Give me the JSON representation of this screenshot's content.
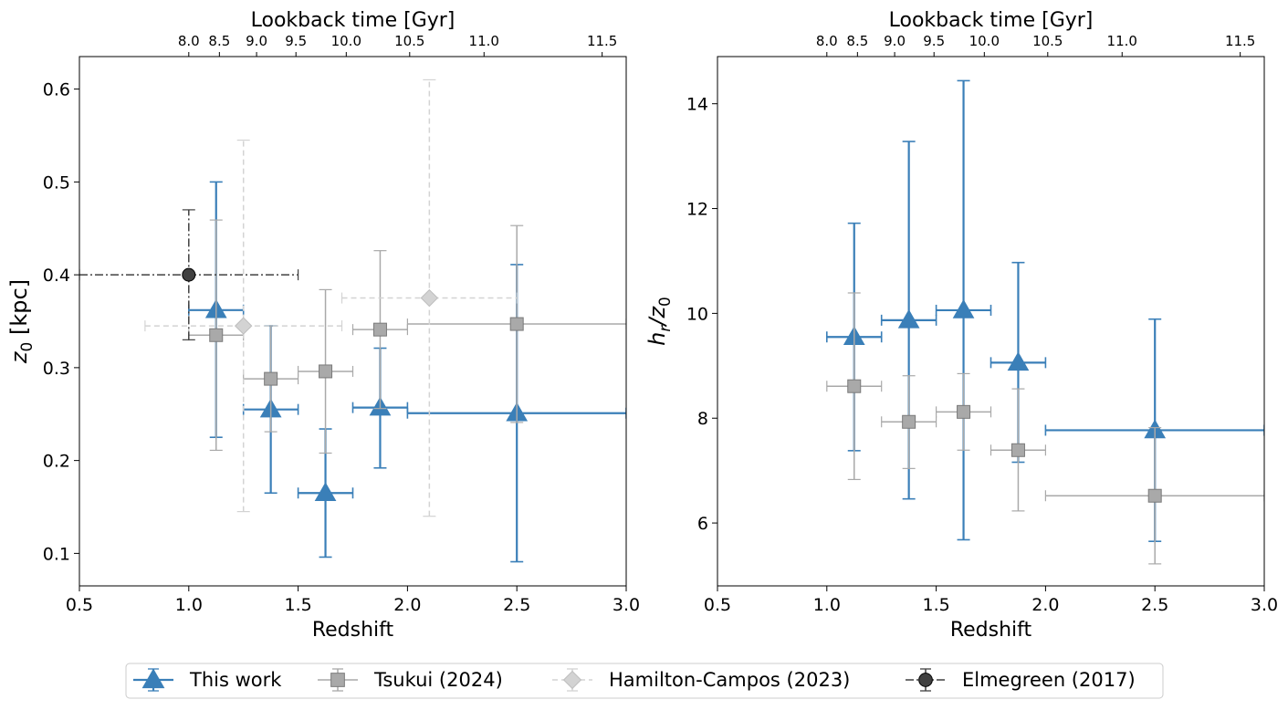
{
  "figure": {
    "legend_position": "bottom-center"
  },
  "legend": [
    {
      "label": "This work",
      "marker": "triangle",
      "color": "#3a7fb8"
    },
    {
      "label": "Tsukui (2024)",
      "marker": "square",
      "color": "#a9a9a9"
    },
    {
      "label": "Hamilton-Campos (2023)",
      "marker": "diamond",
      "color": "#d3d3d3"
    },
    {
      "label": "Elmegreen (2017)",
      "marker": "circle",
      "color": "#404040"
    }
  ],
  "chart_data": [
    {
      "id": "left",
      "type": "scatter",
      "title": "",
      "xlabel": "Redshift",
      "ylabel": "z0 [kpc]",
      "ylabel_main": "z",
      "ylabel_sub": "0",
      "ylabel_suffix": " [kpc]",
      "xlim": [
        0.5,
        3.0
      ],
      "ylim": [
        0.065,
        0.635
      ],
      "xticks": [
        0.5,
        1.0,
        1.5,
        2.0,
        2.5,
        3.0
      ],
      "xtick_labels": [
        "0.5",
        "1.0",
        "1.5",
        "2.0",
        "2.5",
        "3.0"
      ],
      "yticks": [
        0.1,
        0.2,
        0.3,
        0.4,
        0.5,
        0.6
      ],
      "ytick_labels": [
        "0.1",
        "0.2",
        "0.3",
        "0.4",
        "0.5",
        "0.6"
      ],
      "top_axis": {
        "label": "Lookback time [Gyr]",
        "tick_redshifts": [
          1.0,
          1.14,
          1.31,
          1.49,
          1.72,
          2.01,
          2.35,
          2.89
        ],
        "tick_labels": [
          "8.0",
          "8.5",
          "9.0",
          "9.5",
          "10.0",
          "10.5",
          "11.0",
          "11.5"
        ]
      },
      "series": [
        {
          "name": "This work",
          "key": "this-work",
          "marker": "triangle",
          "color": "#3a7fb8",
          "linestyle": "solid",
          "points": [
            {
              "x": 1.125,
              "xlo": 1.0,
              "xhi": 1.25,
              "y": 0.362,
              "ylo": 0.225,
              "yhi": 0.5
            },
            {
              "x": 1.375,
              "xlo": 1.25,
              "xhi": 1.5,
              "y": 0.255,
              "ylo": 0.165,
              "yhi": 0.345
            },
            {
              "x": 1.625,
              "xlo": 1.5,
              "xhi": 1.75,
              "y": 0.165,
              "ylo": 0.096,
              "yhi": 0.234
            },
            {
              "x": 1.875,
              "xlo": 1.75,
              "xhi": 2.0,
              "y": 0.257,
              "ylo": 0.192,
              "yhi": 0.321
            },
            {
              "x": 2.5,
              "xlo": 2.0,
              "xhi": 3.0,
              "y": 0.251,
              "ylo": 0.091,
              "yhi": 0.411
            }
          ]
        },
        {
          "name": "Tsukui (2024)",
          "key": "tsukui",
          "marker": "square",
          "color": "#a9a9a9",
          "linestyle": "solid",
          "points": [
            {
              "x": 1.125,
              "xlo": 1.0,
              "xhi": 1.25,
              "y": 0.335,
              "ylo": 0.211,
              "yhi": 0.459
            },
            {
              "x": 1.375,
              "xlo": 1.25,
              "xhi": 1.5,
              "y": 0.288,
              "ylo": 0.231,
              "yhi": 0.345
            },
            {
              "x": 1.625,
              "xlo": 1.5,
              "xhi": 1.75,
              "y": 0.296,
              "ylo": 0.208,
              "yhi": 0.384
            },
            {
              "x": 1.875,
              "xlo": 1.75,
              "xhi": 2.0,
              "y": 0.341,
              "ylo": 0.256,
              "yhi": 0.426
            },
            {
              "x": 2.5,
              "xlo": 2.0,
              "xhi": 3.0,
              "y": 0.347,
              "ylo": 0.241,
              "yhi": 0.453
            }
          ]
        },
        {
          "name": "Hamilton-Campos (2023)",
          "key": "hamilton",
          "marker": "diamond",
          "color": "#d3d3d3",
          "linestyle": "dashed",
          "points": [
            {
              "x": 1.25,
              "xlo": 0.8,
              "xhi": 1.7,
              "y": 0.345,
              "ylo": 0.145,
              "yhi": 0.545
            },
            {
              "x": 2.1,
              "xlo": 1.7,
              "xhi": 2.5,
              "y": 0.375,
              "ylo": 0.14,
              "yhi": 0.61
            }
          ]
        },
        {
          "name": "Elmegreen (2017)",
          "key": "elmegreen",
          "marker": "circle",
          "color": "#404040",
          "linestyle": "dashdot",
          "points": [
            {
              "x": 1.0,
              "xlo": 0.5,
              "xhi": 1.5,
              "y": 0.4,
              "ylo": 0.33,
              "yhi": 0.47
            }
          ]
        }
      ]
    },
    {
      "id": "right",
      "type": "scatter",
      "title": "",
      "xlabel": "Redshift",
      "ylabel": "hr/z0",
      "ylabel_main": "h",
      "ylabel_sub": "r",
      "ylabel_main2": "/z",
      "ylabel_sub2": "0",
      "xlim": [
        0.5,
        3.0
      ],
      "ylim": [
        4.8,
        14.9
      ],
      "xticks": [
        0.5,
        1.0,
        1.5,
        2.0,
        2.5,
        3.0
      ],
      "xtick_labels": [
        "0.5",
        "1.0",
        "1.5",
        "2.0",
        "2.5",
        "3.0"
      ],
      "yticks": [
        6,
        8,
        10,
        12,
        14
      ],
      "ytick_labels": [
        "6",
        "8",
        "10",
        "12",
        "14"
      ],
      "top_axis": {
        "label": "Lookback time [Gyr]",
        "tick_redshifts": [
          1.0,
          1.14,
          1.31,
          1.49,
          1.72,
          2.01,
          2.35,
          2.89
        ],
        "tick_labels": [
          "8.0",
          "8.5",
          "9.0",
          "9.5",
          "10.0",
          "10.5",
          "11.0",
          "11.5"
        ]
      },
      "series": [
        {
          "name": "This work",
          "key": "this-work",
          "marker": "triangle",
          "color": "#3a7fb8",
          "linestyle": "solid",
          "points": [
            {
              "x": 1.125,
              "xlo": 1.0,
              "xhi": 1.25,
              "y": 9.55,
              "ylo": 7.38,
              "yhi": 11.72
            },
            {
              "x": 1.375,
              "xlo": 1.25,
              "xhi": 1.5,
              "y": 9.87,
              "ylo": 6.46,
              "yhi": 13.28
            },
            {
              "x": 1.625,
              "xlo": 1.5,
              "xhi": 1.75,
              "y": 10.06,
              "ylo": 5.68,
              "yhi": 14.44
            },
            {
              "x": 1.875,
              "xlo": 1.75,
              "xhi": 2.0,
              "y": 9.06,
              "ylo": 7.16,
              "yhi": 10.97
            },
            {
              "x": 2.5,
              "xlo": 2.0,
              "xhi": 3.0,
              "y": 7.77,
              "ylo": 5.65,
              "yhi": 9.89
            }
          ]
        },
        {
          "name": "Tsukui (2024)",
          "key": "tsukui",
          "marker": "square",
          "color": "#a9a9a9",
          "linestyle": "solid",
          "points": [
            {
              "x": 1.125,
              "xlo": 1.0,
              "xhi": 1.25,
              "y": 8.61,
              "ylo": 6.83,
              "yhi": 10.39
            },
            {
              "x": 1.375,
              "xlo": 1.25,
              "xhi": 1.5,
              "y": 7.93,
              "ylo": 7.04,
              "yhi": 8.81
            },
            {
              "x": 1.625,
              "xlo": 1.5,
              "xhi": 1.75,
              "y": 8.12,
              "ylo": 7.39,
              "yhi": 8.85
            },
            {
              "x": 1.875,
              "xlo": 1.75,
              "xhi": 2.0,
              "y": 7.39,
              "ylo": 6.23,
              "yhi": 8.56
            },
            {
              "x": 2.5,
              "xlo": 2.0,
              "xhi": 3.0,
              "y": 6.52,
              "ylo": 5.22,
              "yhi": 7.82
            }
          ]
        }
      ]
    }
  ]
}
